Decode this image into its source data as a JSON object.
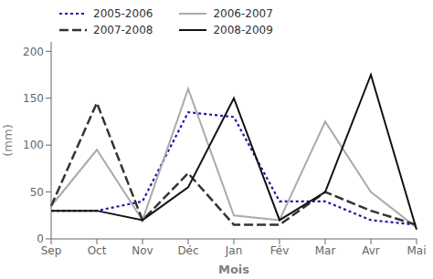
{
  "chart_data": {
    "type": "line",
    "xlabel": "Mois",
    "ylabel": "(mm)",
    "categories": [
      "Sep",
      "Oct",
      "Nov",
      "Déc",
      "Jan",
      "Fév",
      "Mar",
      "Avr",
      "Mai"
    ],
    "series": [
      {
        "name": "2005-2006",
        "color": "#1a1aaa",
        "line_style": "dotted",
        "values": [
          30,
          30,
          40,
          135,
          130,
          40,
          40,
          20,
          15
        ]
      },
      {
        "name": "2006-2007",
        "color": "#aaaaaa",
        "line_style": "solid",
        "values": [
          35,
          95,
          20,
          160,
          25,
          20,
          125,
          50,
          12
        ]
      },
      {
        "name": "2007-2008",
        "color": "#333333",
        "line_style": "dashed",
        "values": [
          35,
          145,
          20,
          70,
          15,
          15,
          50,
          30,
          15
        ]
      },
      {
        "name": "2008-2009",
        "color": "#111111",
        "line_style": "solid",
        "values": [
          30,
          30,
          20,
          55,
          150,
          20,
          50,
          175,
          10
        ]
      }
    ],
    "ylim": [
      0,
      210
    ],
    "yticks": [
      0,
      50,
      100,
      150,
      200
    ],
    "grid": false,
    "legend": "top"
  }
}
